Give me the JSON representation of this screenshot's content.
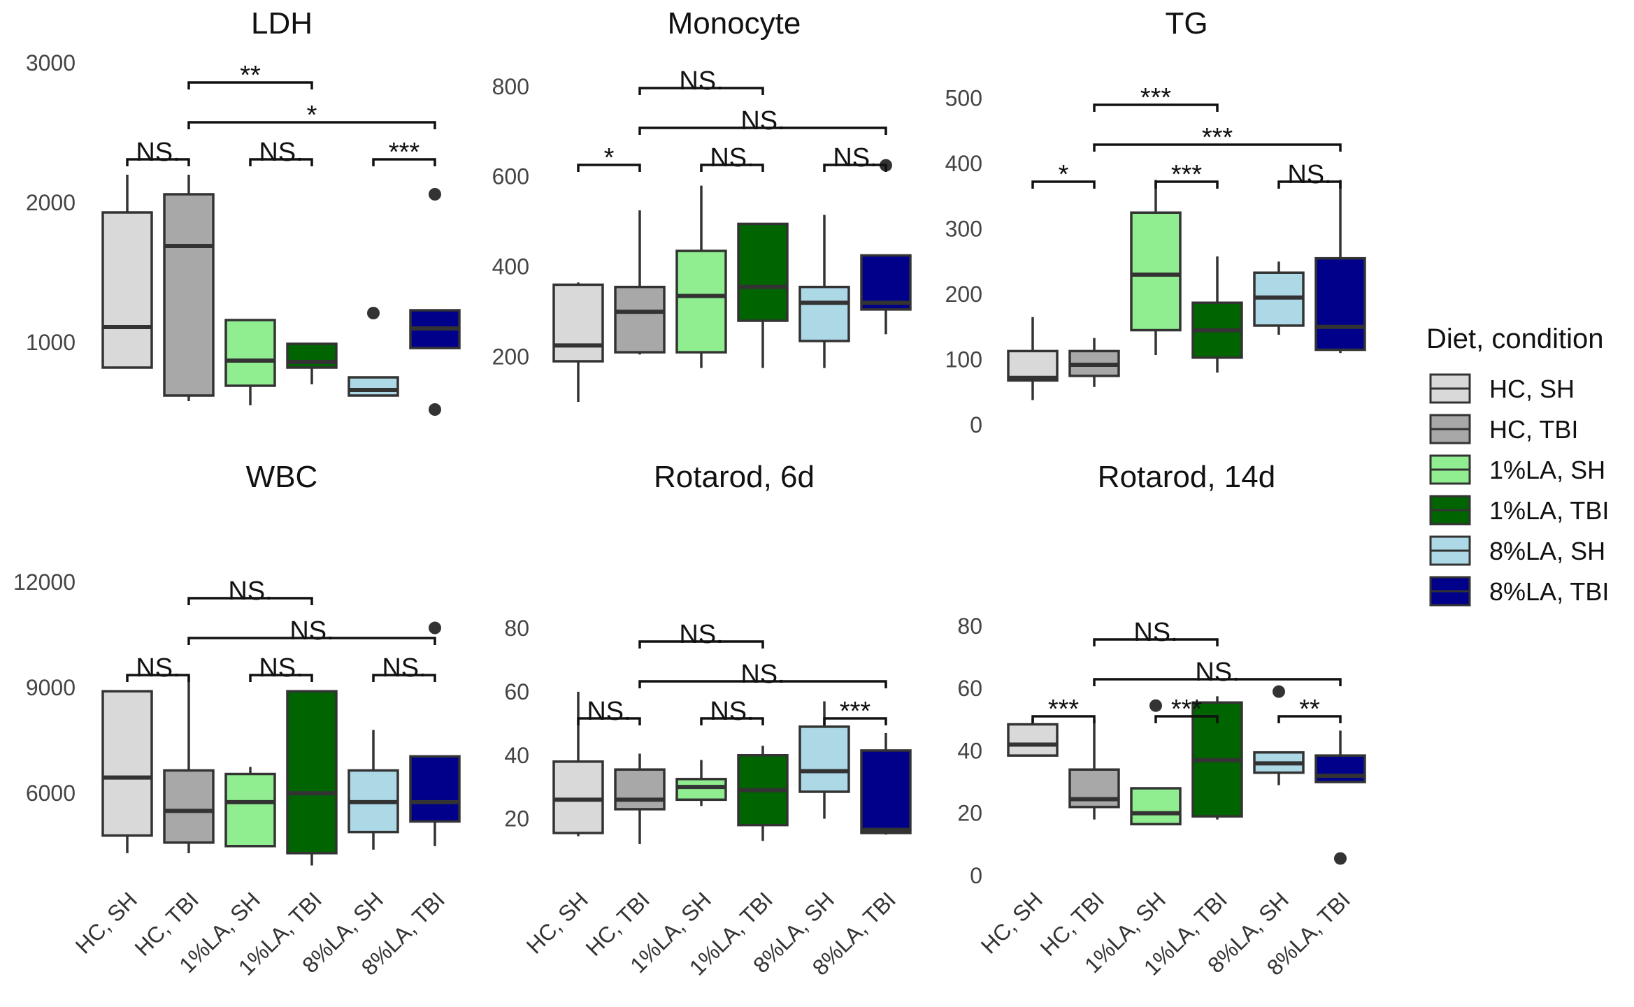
{
  "legend": {
    "title": "Diet, condition",
    "entries": [
      {
        "label": "HC, SH",
        "color": "#d9d9d9"
      },
      {
        "label": "HC, TBI",
        "color": "#a8a8a8"
      },
      {
        "label": "1%LA, SH",
        "color": "#90ee90"
      },
      {
        "label": "1%LA, TBI",
        "color": "#006400"
      },
      {
        "label": "8%LA, SH",
        "color": "#add8e6"
      },
      {
        "label": "8%LA, TBI",
        "color": "#00008b"
      }
    ]
  },
  "chart_data": [
    {
      "type": "box",
      "title": "LDH",
      "categories": [
        "HC, SH",
        "HC, TBI",
        "1%LA, SH",
        "1%LA, TBI",
        "8%LA, SH",
        "8%LA, TBI"
      ],
      "yticks": [
        1000,
        2000,
        3000
      ],
      "ylim": [
        400,
        3000
      ],
      "show_xlabels": false,
      "boxes": [
        {
          "wl": 820,
          "q1": 820,
          "median": 1110,
          "q3": 1930,
          "wh": 2200,
          "outliers": []
        },
        {
          "wl": 580,
          "q1": 620,
          "median": 1690,
          "q3": 2060,
          "wh": 2200,
          "outliers": []
        },
        {
          "wl": 550,
          "q1": 690,
          "median": 870,
          "q3": 1160,
          "wh": 1160,
          "outliers": []
        },
        {
          "wl": 700,
          "q1": 820,
          "median": 860,
          "q3": 990,
          "wh": 990,
          "outliers": []
        },
        {
          "wl": 620,
          "q1": 620,
          "median": 660,
          "q3": 750,
          "wh": 750,
          "outliers": [
            1210
          ]
        },
        {
          "wl": 960,
          "q1": 960,
          "median": 1100,
          "q3": 1230,
          "wh": 1230,
          "outliers": [
            2060,
            520
          ]
        }
      ],
      "comparisons": [
        {
          "g1": 0,
          "g2": 1,
          "label": "NS.",
          "y": 1300
        },
        {
          "g1": 2,
          "g2": 3,
          "label": "NS.",
          "y": 1300
        },
        {
          "g1": 4,
          "g2": 5,
          "label": "***",
          "y": 1300
        },
        {
          "g1": 1,
          "g2": 5,
          "label": "*",
          "y": 1170
        },
        {
          "g1": 1,
          "g2": 3,
          "label": "**",
          "y": 1010
        }
      ]
    },
    {
      "type": "box",
      "title": "Monocyte",
      "categories": [
        "HC, SH",
        "HC, TBI",
        "1%LA, SH",
        "1%LA, TBI",
        "8%LA, SH",
        "8%LA, TBI"
      ],
      "yticks": [
        200,
        400,
        600,
        800
      ],
      "ylim": [
        100,
        840
      ],
      "show_xlabels": false,
      "boxes": [
        {
          "wl": 100,
          "q1": 190,
          "median": 225,
          "q3": 360,
          "wh": 365,
          "outliers": []
        },
        {
          "wl": 205,
          "q1": 210,
          "median": 300,
          "q3": 355,
          "wh": 525,
          "outliers": []
        },
        {
          "wl": 175,
          "q1": 210,
          "median": 335,
          "q3": 435,
          "wh": 580,
          "outliers": []
        },
        {
          "wl": 175,
          "q1": 280,
          "median": 355,
          "q3": 495,
          "wh": 495,
          "outliers": []
        },
        {
          "wl": 175,
          "q1": 235,
          "median": 320,
          "q3": 355,
          "wh": 515,
          "outliers": []
        },
        {
          "wl": 250,
          "q1": 305,
          "median": 320,
          "q3": 425,
          "wh": 425,
          "outliers": [
            625
          ]
        }
      ],
      "comparisons": [
        {
          "g1": 0,
          "g2": 1,
          "label": "*",
          "y": 1300
        },
        {
          "g1": 2,
          "g2": 3,
          "label": "NS.",
          "y": 1300
        },
        {
          "g1": 4,
          "g2": 5,
          "label": "NS.",
          "y": 1300
        },
        {
          "g1": 1,
          "g2": 5,
          "label": "NS.",
          "y": 1170
        },
        {
          "g1": 1,
          "g2": 3,
          "label": "NS.",
          "y": 1010
        }
      ]
    },
    {
      "type": "box",
      "title": "TG",
      "categories": [
        "HC, SH",
        "HC, TBI",
        "1%LA, SH",
        "1%LA, TBI",
        "8%LA, SH",
        "8%LA, TBI"
      ],
      "yticks": [
        0,
        100,
        200,
        300,
        400,
        500
      ],
      "ylim": [
        0,
        520
      ],
      "show_xlabels": false,
      "boxes": [
        {
          "wl": 38,
          "q1": 68,
          "median": 72,
          "q3": 113,
          "wh": 165,
          "outliers": []
        },
        {
          "wl": 58,
          "q1": 75,
          "median": 92,
          "q3": 113,
          "wh": 133,
          "outliers": []
        },
        {
          "wl": 107,
          "q1": 145,
          "median": 230,
          "q3": 325,
          "wh": 375,
          "outliers": []
        },
        {
          "wl": 80,
          "q1": 103,
          "median": 145,
          "q3": 187,
          "wh": 258,
          "outliers": []
        },
        {
          "wl": 138,
          "q1": 152,
          "median": 195,
          "q3": 233,
          "wh": 250,
          "outliers": []
        },
        {
          "wl": 110,
          "q1": 115,
          "median": 150,
          "q3": 255,
          "wh": 375,
          "outliers": []
        }
      ],
      "comparisons": [
        {
          "g1": 0,
          "g2": 1,
          "label": "*",
          "y": 1300
        },
        {
          "g1": 2,
          "g2": 3,
          "label": "***",
          "y": 1300
        },
        {
          "g1": 4,
          "g2": 5,
          "label": "NS.",
          "y": 1300
        },
        {
          "g1": 1,
          "g2": 5,
          "label": "***",
          "y": 1170
        },
        {
          "g1": 1,
          "g2": 3,
          "label": "***",
          "y": 1010
        }
      ]
    },
    {
      "type": "box",
      "title": "WBC",
      "categories": [
        "HC, SH",
        "HC, TBI",
        "1%LA, SH",
        "1%LA, TBI",
        "8%LA, SH",
        "8%LA, TBI"
      ],
      "yticks": [
        6000,
        9000,
        12000
      ],
      "ylim": [
        3900,
        12100
      ],
      "show_xlabels": true,
      "boxes": [
        {
          "wl": 4300,
          "q1": 4800,
          "median": 6450,
          "q3": 8900,
          "wh": 8900,
          "outliers": []
        },
        {
          "wl": 4300,
          "q1": 4600,
          "median": 5500,
          "q3": 6650,
          "wh": 9300,
          "outliers": []
        },
        {
          "wl": 4500,
          "q1": 4500,
          "median": 5750,
          "q3": 6550,
          "wh": 6750,
          "outliers": []
        },
        {
          "wl": 3950,
          "q1": 4300,
          "median": 6000,
          "q3": 8900,
          "wh": 8900,
          "outliers": []
        },
        {
          "wl": 4400,
          "q1": 4900,
          "median": 5750,
          "q3": 6650,
          "wh": 7800,
          "outliers": []
        },
        {
          "wl": 4500,
          "q1": 5200,
          "median": 5750,
          "q3": 7050,
          "wh": 7050,
          "outliers": [
            10700
          ]
        }
      ],
      "comparisons": [
        {
          "g1": 0,
          "g2": 1,
          "label": "NS.",
          "y": 1300
        },
        {
          "g1": 2,
          "g2": 3,
          "label": "NS.",
          "y": 1300
        },
        {
          "g1": 4,
          "g2": 5,
          "label": "NS.",
          "y": 1300
        },
        {
          "g1": 1,
          "g2": 5,
          "label": "NS.",
          "y": 1170
        },
        {
          "g1": 1,
          "g2": 3,
          "label": "NS.",
          "y": 1010
        }
      ]
    },
    {
      "type": "box",
      "title": "Rotarod, 6d",
      "categories": [
        "HC, SH",
        "HC, TBI",
        "1%LA, SH",
        "1%LA, TBI",
        "8%LA, SH",
        "8%LA, TBI"
      ],
      "yticks": [
        20,
        40,
        60,
        80
      ],
      "ylim": [
        10,
        82
      ],
      "show_xlabels": true,
      "boxes": [
        {
          "wl": 14.5,
          "q1": 15.5,
          "median": 26,
          "q3": 38,
          "wh": 60,
          "outliers": []
        },
        {
          "wl": 12,
          "q1": 23,
          "median": 26,
          "q3": 35.5,
          "wh": 40.5,
          "outliers": []
        },
        {
          "wl": 24,
          "q1": 26,
          "median": 30,
          "q3": 32.5,
          "wh": 38.5,
          "outliers": []
        },
        {
          "wl": 13,
          "q1": 18,
          "median": 29,
          "q3": 40,
          "wh": 43,
          "outliers": []
        },
        {
          "wl": 20,
          "q1": 28.5,
          "median": 35,
          "q3": 49,
          "wh": 57,
          "outliers": []
        },
        {
          "wl": 15,
          "q1": 15.5,
          "median": 16.5,
          "q3": 41.5,
          "wh": 47,
          "outliers": []
        }
      ],
      "comparisons": [
        {
          "g1": 0,
          "g2": 1,
          "label": "NS.",
          "y": 1300
        },
        {
          "g1": 2,
          "g2": 3,
          "label": "NS.",
          "y": 1300
        },
        {
          "g1": 4,
          "g2": 5,
          "label": "***",
          "y": 1300
        },
        {
          "g1": 1,
          "g2": 5,
          "label": "NS.",
          "y": 1170
        },
        {
          "g1": 1,
          "g2": 3,
          "label": "NS.",
          "y": 1010
        }
      ]
    },
    {
      "type": "box",
      "title": "Rotarod, 14d",
      "categories": [
        "HC, SH",
        "HC, TBI",
        "1%LA, SH",
        "1%LA, TBI",
        "8%LA, SH",
        "8%LA, TBI"
      ],
      "yticks": [
        0,
        20,
        40,
        60,
        80
      ],
      "ylim": [
        0,
        82
      ],
      "show_xlabels": true,
      "boxes": [
        {
          "wl": 38.5,
          "q1": 38.5,
          "median": 42,
          "q3": 48.5,
          "wh": 50.5,
          "outliers": []
        },
        {
          "wl": 18,
          "q1": 22,
          "median": 24.5,
          "q3": 34,
          "wh": 50,
          "outliers": []
        },
        {
          "wl": 16.5,
          "q1": 16.5,
          "median": 20,
          "q3": 28,
          "wh": 28,
          "outliers": [
            54.5
          ]
        },
        {
          "wl": 18,
          "q1": 19,
          "median": 37,
          "q3": 55.5,
          "wh": 57.5,
          "outliers": []
        },
        {
          "wl": 29,
          "q1": 33,
          "median": 36,
          "q3": 39.5,
          "wh": 39.5,
          "outliers": [
            59
          ]
        },
        {
          "wl": 30,
          "q1": 30,
          "median": 32,
          "q3": 38.5,
          "wh": 46.5,
          "outliers": [
            5.5
          ]
        }
      ],
      "comparisons": [
        {
          "g1": 0,
          "g2": 1,
          "label": "***",
          "y": 1300
        },
        {
          "g1": 2,
          "g2": 3,
          "label": "***",
          "y": 1300
        },
        {
          "g1": 4,
          "g2": 5,
          "label": "**",
          "y": 1300
        },
        {
          "g1": 1,
          "g2": 5,
          "label": "NS.",
          "y": 1170
        },
        {
          "g1": 1,
          "g2": 3,
          "label": "NS.",
          "y": 1010
        }
      ]
    }
  ]
}
